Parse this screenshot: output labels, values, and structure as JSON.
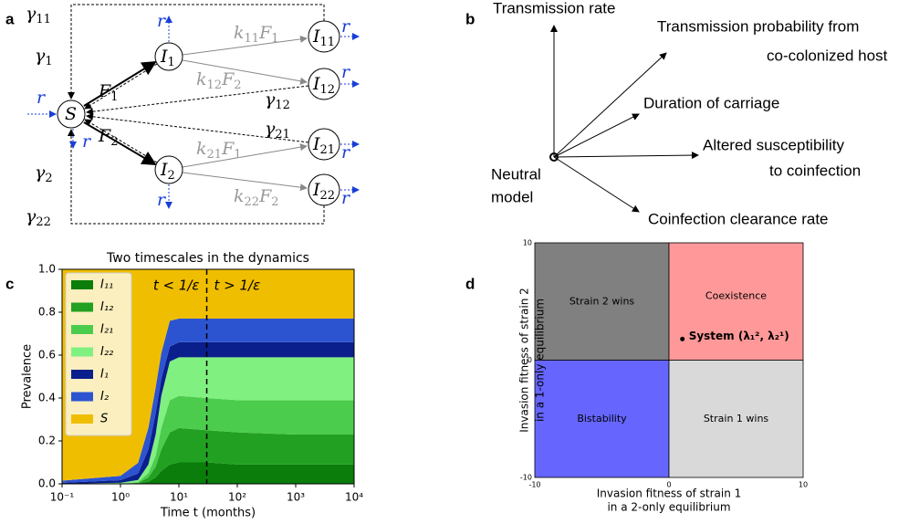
{
  "panel_a": {
    "label": "a",
    "nodes": [
      {
        "parts": [
          "S"
        ]
      },
      {
        "parts": [
          "I",
          "1"
        ]
      },
      {
        "parts": [
          "I",
          "2"
        ]
      },
      {
        "parts": [
          "I",
          "11"
        ]
      },
      {
        "parts": [
          "I",
          "12"
        ]
      },
      {
        "parts": [
          "I",
          "21"
        ]
      },
      {
        "parts": [
          "I",
          "22"
        ]
      }
    ],
    "edge_labels": [
      {
        "parts": [
          "γ",
          "11"
        ]
      },
      {
        "parts": [
          "γ",
          "1"
        ]
      },
      {
        "parts": [
          "F",
          "1"
        ]
      },
      {
        "parts": [
          "γ",
          "12"
        ]
      },
      {
        "parts": [
          "γ",
          "21"
        ]
      },
      {
        "parts": [
          "F",
          "2"
        ]
      },
      {
        "parts": [
          "γ",
          "2"
        ]
      },
      {
        "parts": [
          "γ",
          "22"
        ]
      },
      {
        "parts": [
          "k",
          "11",
          "F",
          "1"
        ]
      },
      {
        "parts": [
          "k",
          "12",
          "F",
          "2"
        ]
      },
      {
        "parts": [
          "k",
          "21",
          "F",
          "1"
        ]
      },
      {
        "parts": [
          "k",
          "22",
          "F",
          "2"
        ]
      }
    ],
    "rate_labels": [
      "r",
      "r",
      "r",
      "r",
      "r",
      "r",
      "r",
      "r"
    ]
  },
  "panel_b": {
    "label": "b",
    "vectors": [
      {
        "lines": [
          "Transmission rate"
        ]
      },
      {
        "lines": [
          "Transmission probability from",
          "co-colonized host"
        ]
      },
      {
        "lines": [
          "Duration of carriage"
        ]
      },
      {
        "lines": [
          "Altered susceptibility",
          "to coinfection"
        ]
      },
      {
        "lines": [
          "Coinfection clearance rate"
        ]
      }
    ],
    "origin_label": [
      "Neutral",
      "model"
    ]
  },
  "chart_data": [
    {
      "type": "stacked-area",
      "panel": "c",
      "title": "Two timescales in the dynamics",
      "xlabel": "Time t (months)",
      "ylabel": "Prevalence",
      "x": [
        0.1,
        1,
        2,
        3,
        4,
        5,
        7,
        10,
        30,
        100,
        1000,
        10000
      ],
      "log_x": true,
      "xlim": [
        0.1,
        10000
      ],
      "xticks": [
        {
          "value": 0.1,
          "label": "10⁻¹"
        },
        {
          "value": 1,
          "label": "10⁰"
        },
        {
          "value": 10,
          "label": "10¹"
        },
        {
          "value": 100,
          "label": "10²"
        },
        {
          "value": 1000,
          "label": "10³"
        },
        {
          "value": 10000,
          "label": "10⁴"
        }
      ],
      "ylim": [
        0,
        1
      ],
      "yticks": [
        {
          "value": 0,
          "label": "0.0"
        },
        {
          "value": 0.2,
          "label": "0.2"
        },
        {
          "value": 0.4,
          "label": "0.4"
        },
        {
          "value": 0.6,
          "label": "0.6"
        },
        {
          "value": 0.8,
          "label": "0.8"
        },
        {
          "value": 1,
          "label": "1.0"
        }
      ],
      "series": [
        {
          "name": "I₁₁",
          "color": "#0a7d0a",
          "values": [
            0,
            0,
            0.002,
            0.01,
            0.03,
            0.06,
            0.09,
            0.1,
            0.1,
            0.09,
            0.09,
            0.09
          ]
        },
        {
          "name": "I₁₂",
          "color": "#22a022",
          "values": [
            0,
            0,
            0.003,
            0.02,
            0.05,
            0.1,
            0.15,
            0.16,
            0.15,
            0.15,
            0.14,
            0.14
          ]
        },
        {
          "name": "I₂₁",
          "color": "#4ccc4c",
          "values": [
            0,
            0,
            0.003,
            0.02,
            0.05,
            0.1,
            0.15,
            0.15,
            0.15,
            0.15,
            0.16,
            0.16
          ]
        },
        {
          "name": "I₂₂",
          "color": "#80f080",
          "values": [
            0,
            0.005,
            0.01,
            0.04,
            0.1,
            0.15,
            0.18,
            0.18,
            0.19,
            0.2,
            0.2,
            0.2
          ]
        },
        {
          "name": "I₁",
          "color": "#0a1f8c",
          "values": [
            0.005,
            0.012,
            0.03,
            0.07,
            0.1,
            0.08,
            0.07,
            0.07,
            0.07,
            0.07,
            0.07,
            0.07
          ]
        },
        {
          "name": "I₂",
          "color": "#2d54d0",
          "values": [
            0.01,
            0.02,
            0.05,
            0.1,
            0.12,
            0.12,
            0.12,
            0.11,
            0.11,
            0.11,
            0.11,
            0.11
          ]
        },
        {
          "name": "S",
          "color": "#f0be00",
          "values": [
            0.985,
            0.963,
            0.902,
            0.74,
            0.55,
            0.39,
            0.24,
            0.23,
            0.23,
            0.23,
            0.23,
            0.23
          ]
        }
      ],
      "vline": 30,
      "annotations": [
        "t < 1/ε",
        "t > 1/ε"
      ]
    },
    {
      "type": "quadrant",
      "panel": "d",
      "xlabel": [
        "Invasion fitness of strain 1",
        "in a 2-only equilibrium"
      ],
      "ylabel": [
        "Invasion fitness of strain 2",
        "in a 1-only equilibrium"
      ],
      "xlim": [
        -10,
        10
      ],
      "ylim": [
        -10,
        10
      ],
      "xticks": [
        -10,
        0,
        10
      ],
      "yticks": [
        -10,
        0,
        10
      ],
      "regions": [
        {
          "name": "Strain 2 wins",
          "color": "#808080"
        },
        {
          "name": "Coexistence",
          "color": "#ff9999"
        },
        {
          "name": "Bistability",
          "color": "#6666ff"
        },
        {
          "name": "Strain 1 wins",
          "color": "#d9d9d9"
        }
      ],
      "point": {
        "label": "System (λ₁², λ₂¹)",
        "x": 1,
        "y": 1.8
      }
    }
  ]
}
